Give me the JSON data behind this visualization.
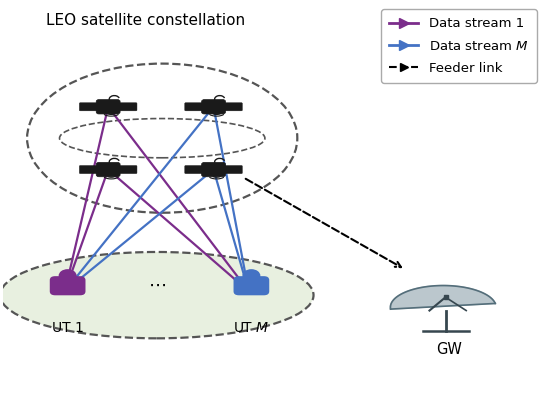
{
  "title": "LEO satellite constellation",
  "purple_color": "#7B2D8B",
  "blue_color": "#4472C4",
  "background": "#ffffff",
  "ground_ellipse_color": "#e8f0e0",
  "ut1_label": "UT 1",
  "utm_label": "UT $M$",
  "gw_label": "GW",
  "legend_purple_label": "Data stream 1",
  "legend_blue_label": "Data stream $M$",
  "legend_feeder_label": "Feeder link"
}
